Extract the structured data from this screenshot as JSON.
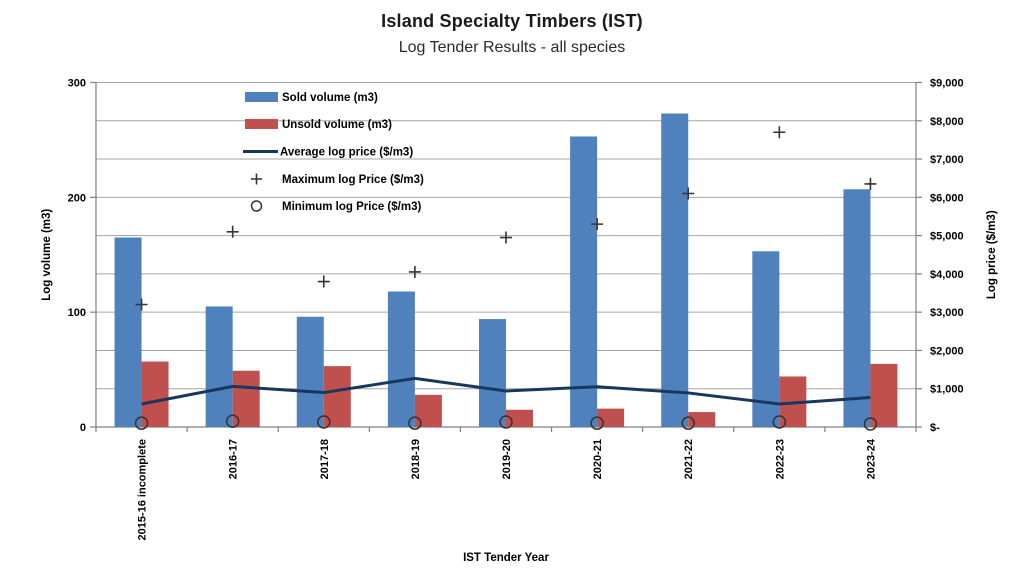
{
  "page": {
    "title": "Island Specialty Timbers (IST)",
    "subtitle": "Log Tender Results - all species"
  },
  "colors": {
    "sold_bar": "#4F81BD",
    "unsold_bar": "#C0504D",
    "avg_line": "#17375E",
    "gridline": "#A6A6A6",
    "axis_line": "#808080",
    "marker": "#333333",
    "text": "#000000"
  },
  "chart_data": {
    "type": "combo",
    "title": "Island Specialty Timbers (IST)",
    "subtitle": "Log Tender Results - all species",
    "categories": [
      "2015-16 incomplete",
      "2016-17",
      "2017-18",
      "2018-19",
      "2019-20",
      "2020-21",
      "2021-22",
      "2022-23",
      "2023-24"
    ],
    "series": [
      {
        "name": "Sold volume (m3)",
        "type": "bar",
        "axis": "left",
        "color": "#4F81BD",
        "values": [
          165,
          105,
          96,
          118,
          94,
          253,
          273,
          153,
          207
        ]
      },
      {
        "name": "Unsold volume (m3)",
        "type": "bar",
        "axis": "left",
        "color": "#C0504D",
        "values": [
          57,
          49,
          53,
          28,
          15,
          16,
          13,
          44,
          55
        ]
      },
      {
        "name": "Average log price ($/m3)",
        "type": "line",
        "axis": "right",
        "color": "#17375E",
        "values": [
          600,
          1060,
          900,
          1270,
          940,
          1050,
          890,
          600,
          770
        ]
      },
      {
        "name": "Maximum log Price ($/m3)",
        "type": "scatter-plus",
        "axis": "right",
        "color": "#333333",
        "values": [
          3200,
          5100,
          3800,
          4050,
          4950,
          5300,
          6100,
          7700,
          6350
        ]
      },
      {
        "name": "Minimum log Price ($/m3)",
        "type": "scatter-circle",
        "axis": "right",
        "color": "#333333",
        "values": [
          100,
          150,
          130,
          100,
          130,
          100,
          100,
          130,
          80
        ]
      }
    ],
    "left_axis": {
      "label": "Log volume (m3)",
      "min": 0,
      "max": 300,
      "tick_labels": [
        "0",
        "100",
        "200",
        "300"
      ]
    },
    "right_axis": {
      "label": "Log price ($/m3)",
      "min": 0,
      "max": 9000,
      "tick_labels": [
        "$-",
        "$1,000",
        "$2,000",
        "$3,000",
        "$4,000",
        "$5,000",
        "$6,000",
        "$7,000",
        "$8,000",
        "$9,000"
      ]
    },
    "x_axis": {
      "label": "IST Tender Year"
    },
    "legend_position": "inside-top-left",
    "grid": "horizontal gridlines at every $1,000 / 33.3 m3"
  }
}
